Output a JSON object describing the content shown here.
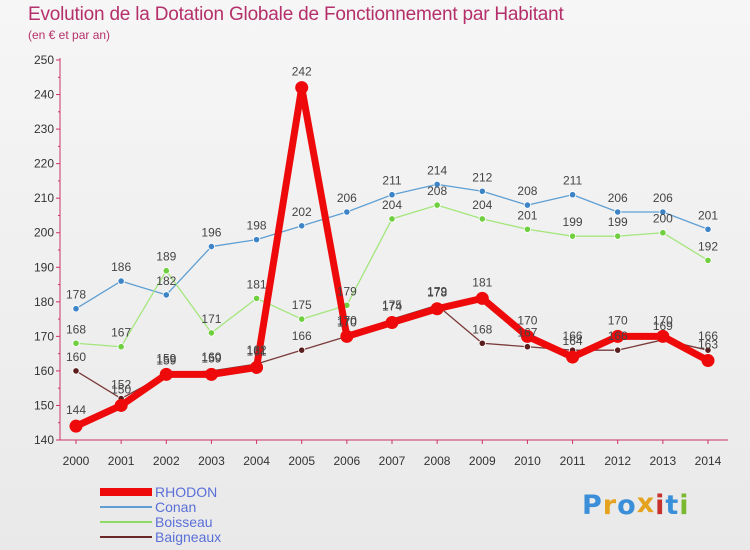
{
  "title": "Evolution de la Dotation Globale de Fonctionnement par Habitant",
  "subtitle": "(en € et par an)",
  "logo": {
    "text": "Proxiti",
    "colors": [
      "#3a8fd8",
      "#e5a21f",
      "#3a8fd8",
      "#e5a21f",
      "#c8302c",
      "#3a8fd8",
      "#7ab830"
    ]
  },
  "chart_data": {
    "type": "line",
    "title": "Evolution de la Dotation Globale de Fonctionnement par Habitant",
    "subtitle": "(en € et par an)",
    "x": [
      "2000",
      "2001",
      "2002",
      "2003",
      "2004",
      "2005",
      "2006",
      "2007",
      "2008",
      "2009",
      "2010",
      "2011",
      "2012",
      "2013",
      "2014"
    ],
    "yticks": [
      140,
      150,
      160,
      170,
      180,
      190,
      200,
      210,
      220,
      230,
      240,
      250
    ],
    "ylim": [
      140,
      250
    ],
    "grid": false,
    "legend_position": "bottom-left",
    "series": [
      {
        "name": "RHODON",
        "color": "#ee0a0a",
        "values": [
          144,
          150,
          159,
          159,
          161,
          242,
          170,
          174,
          178,
          181,
          170,
          164,
          170,
          170,
          163
        ]
      },
      {
        "name": "Conan",
        "color": "#5f9fd3",
        "values": [
          178,
          186,
          182,
          196,
          198,
          202,
          206,
          211,
          214,
          212,
          208,
          211,
          206,
          206,
          201
        ]
      },
      {
        "name": "Boisseau",
        "color": "#8fdc64",
        "values": [
          168,
          167,
          189,
          171,
          181,
          175,
          179,
          204,
          208,
          204,
          201,
          199,
          199,
          200,
          192
        ]
      },
      {
        "name": "Baigneaux",
        "color": "#6b2828",
        "values": [
          160,
          152,
          159,
          160,
          162,
          166,
          170,
          175,
          179,
          168,
          167,
          166,
          166,
          169,
          166
        ]
      }
    ]
  }
}
